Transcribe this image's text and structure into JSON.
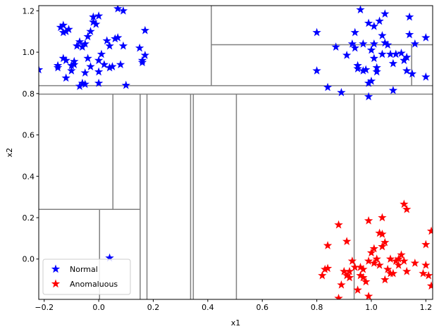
{
  "chart_data": {
    "type": "scatter",
    "title": "",
    "xlabel": "x1",
    "ylabel": "x2",
    "xlim": [
      -0.22,
      1.225
    ],
    "ylim": [
      -0.195,
      1.225
    ],
    "xticks": [
      -0.2,
      0.0,
      0.2,
      0.4,
      0.6,
      0.8,
      1.0,
      1.2
    ],
    "xtick_labels": [
      "−0.2",
      "0.0",
      "0.2",
      "0.4",
      "0.6",
      "0.8",
      "1.0",
      "1.2"
    ],
    "yticks": [
      0.0,
      0.2,
      0.4,
      0.6,
      0.8,
      1.0,
      1.2
    ],
    "ytick_labels": [
      "0.0",
      "0.2",
      "0.4",
      "0.6",
      "0.8",
      "1.0",
      "1.2"
    ],
    "grid": false,
    "legend_position": "lower-left",
    "partition_color": "#808080",
    "partition_lines": [
      {
        "orient": "h",
        "at": 0.838,
        "from": -0.22,
        "to": 1.225
      },
      {
        "orient": "h",
        "at": 0.797,
        "from": -0.22,
        "to": 1.225
      },
      {
        "orient": "v",
        "at": 0.413,
        "from": 0.838,
        "to": 1.225
      },
      {
        "orient": "h",
        "at": 1.036,
        "from": 0.413,
        "to": 1.225
      },
      {
        "orient": "v",
        "at": 1.148,
        "from": 0.838,
        "to": 1.036
      },
      {
        "orient": "v",
        "at": 0.052,
        "from": 0.24,
        "to": 0.797
      },
      {
        "orient": "v",
        "at": 0.152,
        "from": -0.195,
        "to": 0.797
      },
      {
        "orient": "v",
        "at": 0.177,
        "from": -0.195,
        "to": 0.797
      },
      {
        "orient": "v",
        "at": 0.337,
        "from": -0.195,
        "to": 0.797
      },
      {
        "orient": "v",
        "at": 0.347,
        "from": -0.195,
        "to": 0.797
      },
      {
        "orient": "v",
        "at": 0.505,
        "from": -0.195,
        "to": 0.797
      },
      {
        "orient": "v",
        "at": 0.937,
        "from": -0.195,
        "to": 0.797
      },
      {
        "orient": "h",
        "at": 0.24,
        "from": -0.22,
        "to": 0.152
      },
      {
        "orient": "v",
        "at": 0.003,
        "from": -0.195,
        "to": 0.24
      }
    ],
    "series": [
      {
        "name": "Normal",
        "color": "#0000ff",
        "marker": "star",
        "points": [
          [
            -0.22,
            0.915
          ],
          [
            -0.15,
            0.935
          ],
          [
            -0.15,
            0.925
          ],
          [
            -0.14,
            1.12
          ],
          [
            -0.13,
            1.13
          ],
          [
            -0.12,
            1.1
          ],
          [
            -0.13,
            1.095
          ],
          [
            -0.11,
            1.11
          ],
          [
            -0.12,
            0.96
          ],
          [
            -0.13,
            0.97
          ],
          [
            -0.12,
            0.875
          ],
          [
            -0.1,
            0.935
          ],
          [
            -0.1,
            0.91
          ],
          [
            -0.09,
            0.94
          ],
          [
            -0.09,
            0.955
          ],
          [
            -0.08,
            1.03
          ],
          [
            -0.07,
            1.05
          ],
          [
            -0.06,
            1.025
          ],
          [
            -0.05,
            1.04
          ],
          [
            -0.04,
            1.075
          ],
          [
            -0.03,
            1.1
          ],
          [
            -0.02,
            1.145
          ],
          [
            -0.02,
            1.17
          ],
          [
            -0.01,
            1.135
          ],
          [
            0.0,
            1.175
          ],
          [
            -0.04,
            0.97
          ],
          [
            -0.03,
            0.93
          ],
          [
            -0.05,
            0.9
          ],
          [
            -0.06,
            0.85
          ],
          [
            -0.07,
            0.835
          ],
          [
            -0.05,
            0.845
          ],
          [
            0.0,
            0.905
          ],
          [
            0.0,
            0.96
          ],
          [
            0.01,
            0.99
          ],
          [
            0.02,
            0.94
          ],
          [
            0.03,
            1.055
          ],
          [
            0.04,
            1.03
          ],
          [
            0.04,
            0.925
          ],
          [
            0.05,
            0.93
          ],
          [
            0.06,
            1.065
          ],
          [
            0.07,
            1.07
          ],
          [
            0.07,
            1.21
          ],
          [
            0.09,
            1.03
          ],
          [
            0.08,
            0.94
          ],
          [
            0.09,
            1.2
          ],
          [
            0.1,
            0.84
          ],
          [
            0.15,
            1.02
          ],
          [
            0.16,
            0.95
          ],
          [
            0.16,
            0.96
          ],
          [
            0.17,
            0.985
          ],
          [
            0.17,
            1.105
          ],
          [
            0.0,
            0.85
          ],
          [
            0.8,
            1.095
          ],
          [
            0.8,
            0.91
          ],
          [
            0.84,
            0.83
          ],
          [
            0.87,
            1.025
          ],
          [
            0.89,
            0.805
          ],
          [
            0.91,
            0.985
          ],
          [
            0.93,
            1.04
          ],
          [
            0.94,
            1.02
          ],
          [
            0.94,
            1.095
          ],
          [
            0.95,
            0.935
          ],
          [
            0.95,
            0.92
          ],
          [
            0.96,
            1.205
          ],
          [
            0.97,
            1.04
          ],
          [
            0.97,
            0.91
          ],
          [
            0.98,
            0.915
          ],
          [
            0.99,
            1.14
          ],
          [
            0.99,
            0.85
          ],
          [
            1.0,
            0.86
          ],
          [
            1.0,
            1.01
          ],
          [
            1.01,
            1.04
          ],
          [
            1.01,
            1.125
          ],
          [
            1.01,
            0.97
          ],
          [
            1.02,
            0.925
          ],
          [
            1.02,
            0.905
          ],
          [
            1.03,
            1.15
          ],
          [
            1.04,
            1.08
          ],
          [
            1.04,
            0.99
          ],
          [
            1.05,
            1.045
          ],
          [
            1.05,
            1.185
          ],
          [
            1.06,
            1.035
          ],
          [
            1.07,
            0.99
          ],
          [
            1.08,
            0.945
          ],
          [
            1.08,
            0.815
          ],
          [
            1.09,
            0.99
          ],
          [
            1.11,
            0.995
          ],
          [
            1.12,
            0.96
          ],
          [
            1.13,
            0.975
          ],
          [
            1.13,
            0.91
          ],
          [
            1.14,
            1.085
          ],
          [
            1.14,
            1.17
          ],
          [
            1.15,
            0.895
          ],
          [
            1.16,
            1.04
          ],
          [
            1.2,
            1.07
          ],
          [
            1.2,
            0.88
          ],
          [
            0.99,
            0.785
          ],
          [
            0.04,
            0.005
          ]
        ]
      },
      {
        "name": "Anomaluous",
        "color": "#ff0000",
        "marker": "star",
        "points": [
          [
            0.82,
            -0.08
          ],
          [
            0.83,
            -0.05
          ],
          [
            0.84,
            -0.045
          ],
          [
            0.84,
            0.065
          ],
          [
            0.88,
            0.165
          ],
          [
            0.89,
            -0.125
          ],
          [
            0.9,
            -0.06
          ],
          [
            0.91,
            0.085
          ],
          [
            0.91,
            -0.08
          ],
          [
            0.92,
            -0.06
          ],
          [
            0.92,
            -0.09
          ],
          [
            0.93,
            -0.01
          ],
          [
            0.94,
            -0.04
          ],
          [
            0.95,
            -0.15
          ],
          [
            0.96,
            -0.08
          ],
          [
            0.96,
            -0.04
          ],
          [
            0.97,
            -0.09
          ],
          [
            0.97,
            -0.05
          ],
          [
            0.98,
            -0.11
          ],
          [
            0.99,
            0.185
          ],
          [
            0.99,
            -0.01
          ],
          [
            1.0,
            0.03
          ],
          [
            1.01,
            0.05
          ],
          [
            1.01,
            -0.02
          ],
          [
            1.02,
            0.0
          ],
          [
            1.03,
            0.125
          ],
          [
            1.03,
            -0.03
          ],
          [
            1.04,
            0.2
          ],
          [
            1.04,
            0.06
          ],
          [
            1.05,
            0.08
          ],
          [
            1.05,
            -0.1
          ],
          [
            1.06,
            -0.05
          ],
          [
            1.07,
            0.0
          ],
          [
            1.08,
            -0.07
          ],
          [
            1.09,
            -0.01
          ],
          [
            1.1,
            0.0
          ],
          [
            1.11,
            0.02
          ],
          [
            1.12,
            -0.01
          ],
          [
            1.12,
            0.265
          ],
          [
            1.13,
            0.24
          ],
          [
            1.13,
            -0.06
          ],
          [
            1.16,
            -0.02
          ],
          [
            1.19,
            -0.07
          ],
          [
            1.2,
            0.07
          ],
          [
            1.2,
            -0.03
          ],
          [
            1.21,
            -0.08
          ],
          [
            1.22,
            0.135
          ],
          [
            1.22,
            -0.13
          ],
          [
            1.04,
            0.12
          ],
          [
            0.88,
            -0.19
          ],
          [
            0.99,
            -0.18
          ],
          [
            1.07,
            -0.07
          ],
          [
            1.1,
            -0.03
          ]
        ]
      }
    ]
  }
}
